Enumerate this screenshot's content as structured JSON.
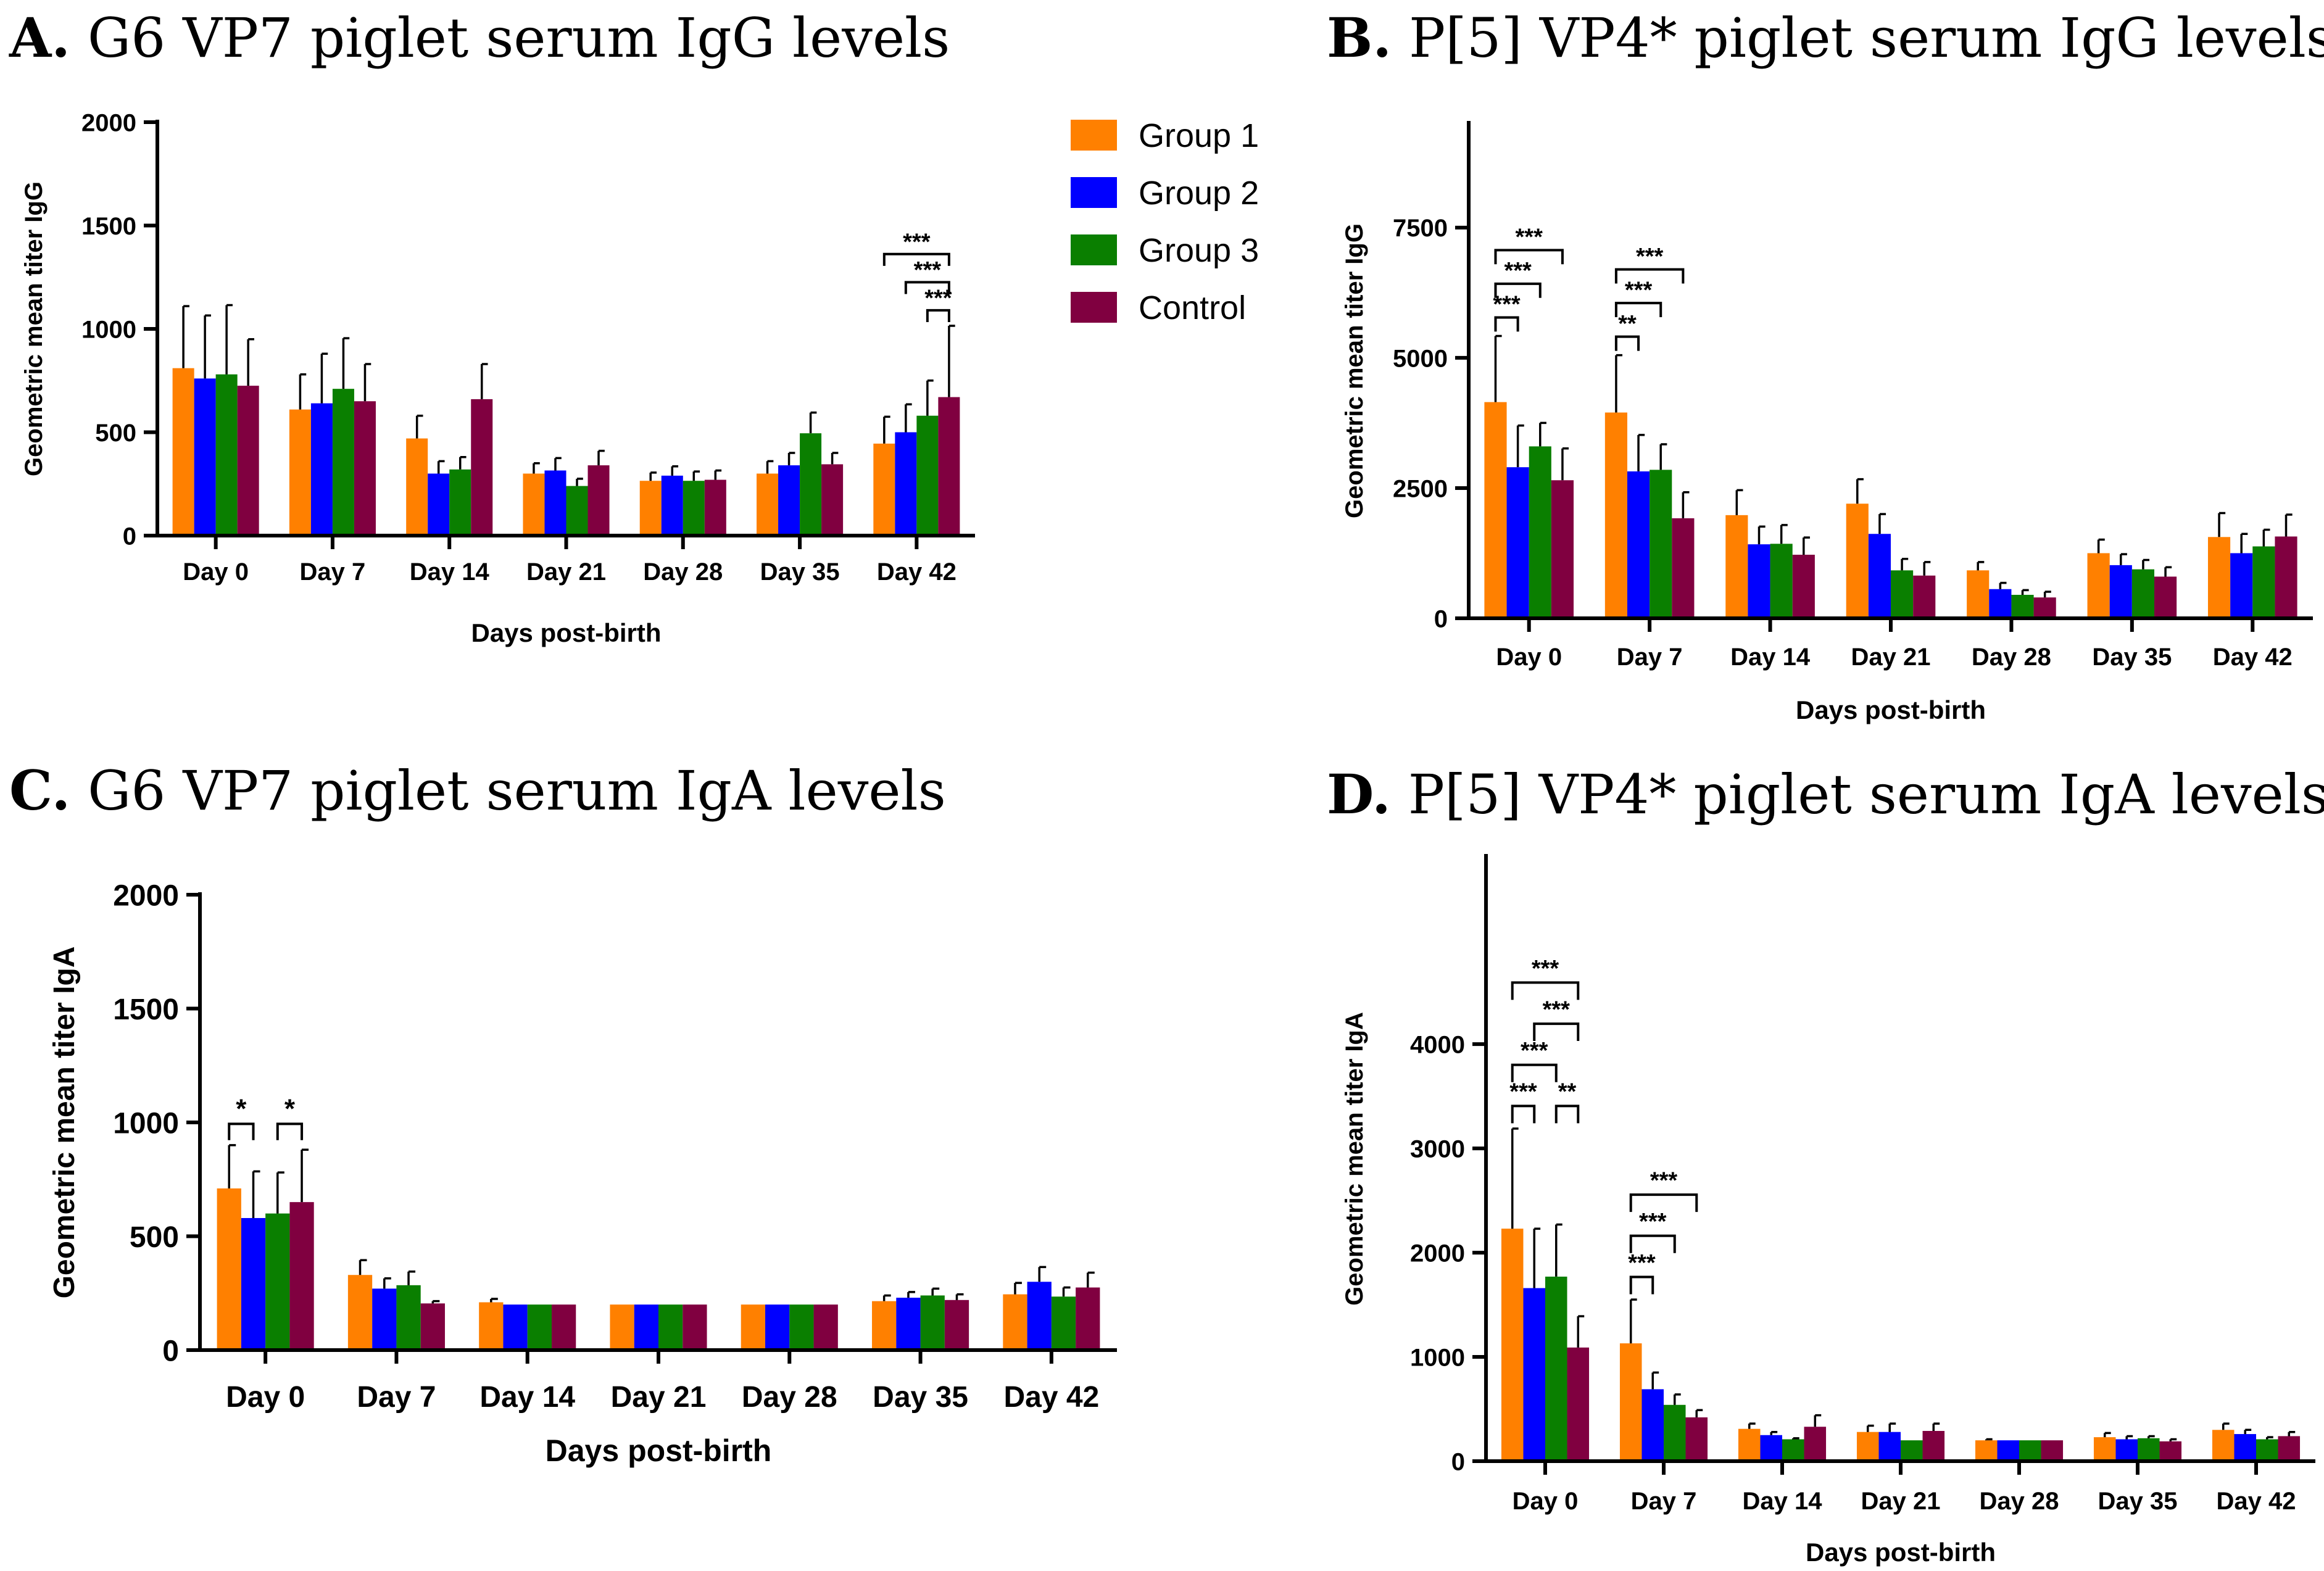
{
  "legend": [
    {
      "name": "Group 1",
      "color": "#FF8000"
    },
    {
      "name": "Group 2",
      "color": "#0000FF"
    },
    {
      "name": "Group 3",
      "color": "#0A7F00"
    },
    {
      "name": "Control",
      "color": "#800040"
    }
  ],
  "chart_data": [
    {
      "id": "A",
      "panel_label": "A.",
      "title": "G6 VP7 piglet serum IgG levels",
      "type": "bar",
      "xlabel": "Days post-birth",
      "ylabel": "Geometric mean titer IgG",
      "ylim": [
        0,
        2000
      ],
      "yticks": [
        "0",
        "500",
        "1000",
        "1500",
        "2000"
      ],
      "yticks_values": [
        0,
        500,
        1000,
        1500,
        2000
      ],
      "categories": [
        "Day 0",
        "Day 7",
        "Day 14",
        "Day 21",
        "Day 28",
        "Day 35",
        "Day 42"
      ],
      "series": [
        {
          "name": "Group 1",
          "values": [
            810,
            610,
            470,
            300,
            265,
            300,
            445
          ],
          "errors": [
            300,
            170,
            110,
            50,
            40,
            60,
            130
          ]
        },
        {
          "name": "Group 2",
          "values": [
            760,
            640,
            300,
            315,
            290,
            340,
            500
          ],
          "errors": [
            305,
            240,
            60,
            60,
            45,
            60,
            135
          ]
        },
        {
          "name": "Group 3",
          "values": [
            780,
            710,
            320,
            240,
            265,
            495,
            580
          ],
          "errors": [
            335,
            245,
            60,
            35,
            45,
            100,
            170
          ]
        },
        {
          "name": "Control",
          "values": [
            725,
            650,
            660,
            340,
            270,
            345,
            670
          ],
          "errors": [
            225,
            180,
            170,
            70,
            45,
            55,
            345
          ]
        }
      ],
      "significance": [
        {
          "category": "Day 42",
          "from": "Group 1",
          "to": "Control",
          "label": "***"
        },
        {
          "category": "Day 42",
          "from": "Group 2",
          "to": "Control",
          "label": "***"
        },
        {
          "category": "Day 42",
          "from": "Group 3",
          "to": "Control",
          "label": "***"
        }
      ]
    },
    {
      "id": "B",
      "panel_label": "B.",
      "title": "P[5] VP4* piglet serum IgG levels",
      "type": "bar",
      "xlabel": "Days post-birth",
      "ylabel": "Geometric mean titer IgG",
      "ylim": [
        0,
        9500
      ],
      "yticks": [
        "0",
        "2500",
        "5000",
        "7500"
      ],
      "yticks_values": [
        0,
        2500,
        5000,
        7500
      ],
      "categories": [
        "Day 0",
        "Day 7",
        "Day 14",
        "Day 21",
        "Day 28",
        "Day 35",
        "Day 42"
      ],
      "series": [
        {
          "name": "Group 1",
          "values": [
            4150,
            3950,
            1980,
            2200,
            920,
            1250,
            1560
          ],
          "errors": [
            1270,
            1100,
            480,
            470,
            160,
            260,
            460
          ]
        },
        {
          "name": "Group 2",
          "values": [
            2900,
            2820,
            1420,
            1620,
            560,
            1020,
            1250
          ],
          "errors": [
            800,
            700,
            340,
            380,
            120,
            210,
            370
          ]
        },
        {
          "name": "Group 3",
          "values": [
            3300,
            2850,
            1430,
            920,
            450,
            940,
            1380
          ],
          "errors": [
            450,
            490,
            360,
            220,
            90,
            180,
            320
          ]
        },
        {
          "name": "Control",
          "values": [
            2650,
            1920,
            1220,
            820,
            400,
            800,
            1570
          ],
          "errors": [
            610,
            500,
            330,
            260,
            110,
            180,
            420
          ]
        }
      ],
      "significance": [
        {
          "category": "Day 0",
          "from": "Group 1",
          "to": "Group 2",
          "label": "***"
        },
        {
          "category": "Day 0",
          "from": "Group 1",
          "to": "Group 3",
          "label": "***"
        },
        {
          "category": "Day 0",
          "from": "Group 1",
          "to": "Control",
          "label": "***"
        },
        {
          "category": "Day 7",
          "from": "Group 1",
          "to": "Group 2",
          "label": "**"
        },
        {
          "category": "Day 7",
          "from": "Group 1",
          "to": "Group 3",
          "label": "***"
        },
        {
          "category": "Day 7",
          "from": "Group 1",
          "to": "Control",
          "label": "***"
        }
      ]
    },
    {
      "id": "C",
      "panel_label": "C.",
      "title": "G6 VP7 piglet serum IgA levels",
      "type": "bar",
      "xlabel": "Days post-birth",
      "ylabel": "Geometric mean titer IgA",
      "ylim": [
        0,
        2000
      ],
      "yticks": [
        "0",
        "500",
        "1000",
        "1500",
        "2000"
      ],
      "yticks_values": [
        0,
        500,
        1000,
        1500,
        2000
      ],
      "categories": [
        "Day 0",
        "Day 7",
        "Day 14",
        "Day 21",
        "Day 28",
        "Day 35",
        "Day 42"
      ],
      "series": [
        {
          "name": "Group 1",
          "values": [
            710,
            330,
            210,
            200,
            200,
            215,
            245
          ],
          "errors": [
            190,
            65,
            15,
            0,
            0,
            25,
            50
          ]
        },
        {
          "name": "Group 2",
          "values": [
            580,
            270,
            200,
            200,
            200,
            230,
            300
          ],
          "errors": [
            205,
            45,
            0,
            0,
            0,
            25,
            65
          ]
        },
        {
          "name": "Group 3",
          "values": [
            600,
            285,
            200,
            200,
            200,
            240,
            235
          ],
          "errors": [
            180,
            60,
            0,
            0,
            0,
            30,
            40
          ]
        },
        {
          "name": "Control",
          "values": [
            650,
            205,
            200,
            200,
            200,
            220,
            275
          ],
          "errors": [
            230,
            10,
            0,
            0,
            0,
            25,
            65
          ]
        }
      ],
      "significance": [
        {
          "category": "Day 0",
          "from": "Group 1",
          "to": "Group 2",
          "label": "*"
        },
        {
          "category": "Day 0",
          "from": "Group 3",
          "to": "Control",
          "label": "*"
        }
      ]
    },
    {
      "id": "D",
      "panel_label": "D.",
      "title": "P[5] VP4* piglet serum IgA levels",
      "type": "bar",
      "xlabel": "Days post-birth",
      "ylabel": "Geometric mean titer IgA",
      "ylim": [
        0,
        5800
      ],
      "yticks": [
        "0",
        "1000",
        "2000",
        "3000",
        "4000"
      ],
      "yticks_values": [
        0,
        1000,
        2000,
        3000,
        4000
      ],
      "categories": [
        "Day 0",
        "Day 7",
        "Day 14",
        "Day 21",
        "Day 28",
        "Day 35",
        "Day 42"
      ],
      "series": [
        {
          "name": "Group 1",
          "values": [
            2230,
            1130,
            310,
            280,
            200,
            230,
            300
          ],
          "errors": [
            960,
            420,
            50,
            60,
            10,
            40,
            60
          ]
        },
        {
          "name": "Group 2",
          "values": [
            1660,
            690,
            250,
            280,
            200,
            210,
            260
          ],
          "errors": [
            570,
            160,
            30,
            80,
            0,
            30,
            40
          ]
        },
        {
          "name": "Group 3",
          "values": [
            1770,
            540,
            210,
            200,
            200,
            220,
            210
          ],
          "errors": [
            500,
            100,
            10,
            0,
            0,
            20,
            20
          ]
        },
        {
          "name": "Control",
          "values": [
            1090,
            420,
            330,
            290,
            200,
            190,
            240
          ],
          "errors": [
            300,
            70,
            110,
            70,
            0,
            20,
            40
          ]
        }
      ],
      "significance": [
        {
          "category": "Day 0",
          "from": "Group 1",
          "to": "Group 2",
          "label": "***"
        },
        {
          "category": "Day 0",
          "from": "Group 1",
          "to": "Group 3",
          "label": "***"
        },
        {
          "category": "Day 0",
          "from": "Group 2",
          "to": "Control",
          "label": "***"
        },
        {
          "category": "Day 0",
          "from": "Group 1",
          "to": "Control",
          "label": "***"
        },
        {
          "category": "Day 0",
          "from": "Group 3",
          "to": "Control",
          "label": "**"
        },
        {
          "category": "Day 7",
          "from": "Group 1",
          "to": "Group 2",
          "label": "***"
        },
        {
          "category": "Day 7",
          "from": "Group 1",
          "to": "Group 3",
          "label": "***"
        },
        {
          "category": "Day 7",
          "from": "Group 1",
          "to": "Control",
          "label": "***"
        }
      ]
    }
  ]
}
